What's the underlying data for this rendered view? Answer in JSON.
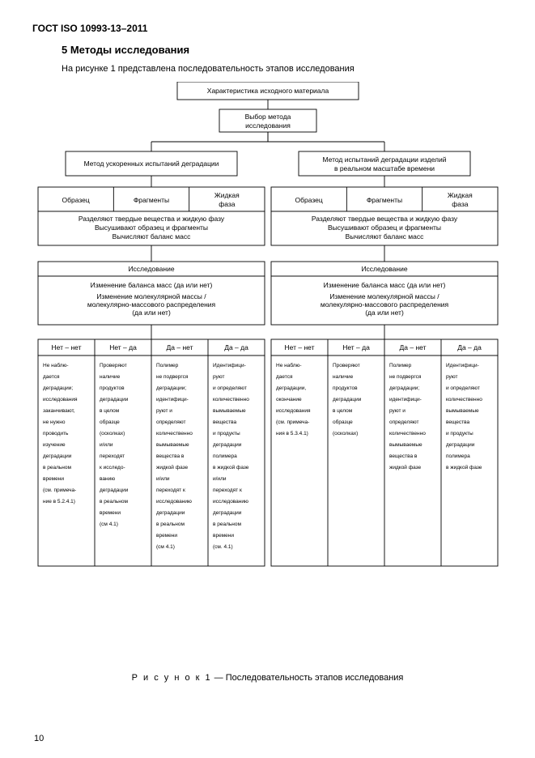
{
  "doc_header": "ГОСТ ISO 10993-13–2011",
  "section_title": "5 Методы исследования",
  "intro_text": "На рисунке 1 представлена последовательность этапов исследования",
  "caption_prefix": "Р и с у н о к  1",
  "caption_tail": " — Последовательность этапов исследования",
  "page_number": "10",
  "figure": {
    "type": "flowchart",
    "colors": {
      "background": "#ffffff",
      "stroke": "#000000",
      "text": "#000000"
    },
    "top": {
      "n1": "Характеристика исходного материала",
      "n2_l1": "Выбор метода",
      "n2_l2": "исследования"
    },
    "branch": {
      "left_title": "Метод ускоренных испытаний деградации",
      "right_title_l1": "Метод испытаний деградации изделий",
      "right_title_l2": "в реальном масштабе времени"
    },
    "sample_row": {
      "c1": "Образец",
      "c2": "Фрагменты",
      "c3_l1": "Жидкая",
      "c3_l2": "фаза"
    },
    "sep": {
      "l1": "Разделяют твердые вещества и жидкую фазу",
      "l2": "Высушивают образец и фрагменты",
      "l3": "Вычисляют баланс масс"
    },
    "study": {
      "title": "Исследование",
      "q1": "Изменение баланса масс (да или нет)",
      "q2_l1": "Изменение молекулярной массы /",
      "q2_l2": "молекулярно-массового распределения",
      "q2_l3": "(да или нет)"
    },
    "outcomes_left": [
      {
        "h": "Нет – нет",
        "lines": [
          "Не наблю-",
          "дается",
          "деградации;",
          "исследования",
          "заканчивают,",
          "не нужно",
          "проводить",
          "изучение",
          "деградации",
          "в реальном",
          "времени",
          "(см. примеча-",
          "ние в 5.2.4.1)"
        ]
      },
      {
        "h": "Нет – да",
        "lines": [
          "Проверяют",
          "наличие",
          "продуктов",
          "деградации",
          "в целом",
          "образце",
          "(осколках)",
          "и/или",
          "переходят",
          "к исследо-",
          "ванию",
          "деградации",
          "в реальном",
          "времени",
          "(см 4.1)"
        ]
      },
      {
        "h": "Да – нет",
        "lines": [
          "Полимер",
          "не подвергся",
          "деградации;",
          "идентифици-",
          "руют и",
          "определяют",
          "количественно",
          "вымываемые",
          "вещества в",
          "жидкой фазе",
          "и/или",
          "переходят к",
          "исследованию",
          "деградации",
          "в реальном",
          "времени",
          "(см 4.1)"
        ]
      },
      {
        "h": "Да – да",
        "lines": [
          "Идентифици-",
          "руют",
          "и определяют",
          "количественно",
          "вымываемые",
          "вещества",
          "и продукты",
          "деградации",
          "полимера",
          "в жидкой фазе",
          "и/или",
          "переходят к",
          "исследованию",
          "деградации",
          "в реальном",
          "времени",
          "(см. 4.1)"
        ]
      }
    ],
    "outcomes_right": [
      {
        "h": "Нет – нет",
        "lines": [
          "Не наблю-",
          "дается",
          "деградации,",
          "окончание",
          "исследования",
          "(см. примеча-",
          "ния в 5.3.4.1)"
        ]
      },
      {
        "h": "Нет – да",
        "lines": [
          "Проверяют",
          "наличие",
          "продуктов",
          "деградации",
          "в целом",
          "образце",
          "(осколках)"
        ]
      },
      {
        "h": "Да – нет",
        "lines": [
          "Полимер",
          "не подвергся",
          "деградации;",
          "идентифици-",
          "руют и",
          "определяют",
          "количественно",
          "вымываемые",
          "вещества в",
          "жидкой фазе"
        ]
      },
      {
        "h": "Да – да",
        "lines": [
          "Идентифици-",
          "руют",
          "и определяют",
          "количественно",
          "вымываемые",
          "вещества",
          "и продукты",
          "деградации",
          "полимера",
          "в жидкой фазе"
        ]
      }
    ]
  }
}
